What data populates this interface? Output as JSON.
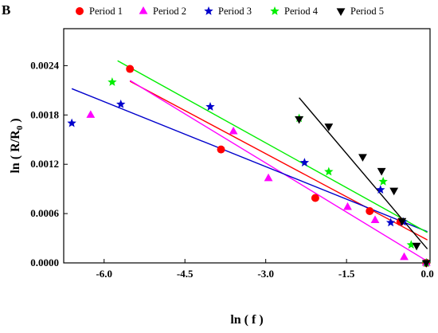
{
  "panel_label": "B",
  "chart_data": {
    "type": "scatter",
    "xlabel": "ln ( f )",
    "ylabel_main": "ln ( R/R",
    "ylabel_sub": "0",
    "ylabel_close": " )",
    "xlim": [
      -6.75,
      0.05
    ],
    "ylim": [
      0.0,
      0.00285
    ],
    "x_ticks": [
      -6.0,
      -4.5,
      -3.0,
      -1.5,
      0.0
    ],
    "x_tick_labels": [
      "-6.0",
      "-4.5",
      "-3.0",
      "-1.5",
      "0.0"
    ],
    "y_ticks": [
      0.0,
      0.0006,
      0.0012,
      0.0018,
      0.0024
    ],
    "y_tick_labels": [
      "0.0000",
      "0.0006",
      "0.0012",
      "0.0018",
      "0.0024"
    ],
    "grid": false,
    "legend_position": "top",
    "series": [
      {
        "name": "Period 1",
        "color": "#ff0000",
        "marker": "circle",
        "points": [
          [
            -5.52,
            0.00236
          ],
          [
            -3.83,
            0.00138
          ],
          [
            -2.08,
            0.00079
          ],
          [
            -1.07,
            0.00063
          ],
          [
            -0.5,
            0.0005
          ],
          [
            -0.02,
            0.0
          ]
        ],
        "fit": [
          [
            -5.52,
            0.00221
          ],
          [
            0.0,
            0.00028
          ]
        ]
      },
      {
        "name": "Period 2",
        "color": "#ff00ff",
        "marker": "triangle-up",
        "points": [
          [
            -6.25,
            0.0018
          ],
          [
            -3.6,
            0.0016
          ],
          [
            -2.95,
            0.00103
          ],
          [
            -1.48,
            0.00068
          ],
          [
            -0.97,
            0.00052
          ],
          [
            -0.43,
            7e-05
          ],
          [
            -0.02,
            0.0
          ]
        ],
        "fit": [
          [
            -5.52,
            0.00222
          ],
          [
            0.0,
            2e-05
          ]
        ]
      },
      {
        "name": "Period 3",
        "color": "#0000cc",
        "marker": "star",
        "points": [
          [
            -6.6,
            0.0017
          ],
          [
            -5.69,
            0.00193
          ],
          [
            -4.03,
            0.0019
          ],
          [
            -2.28,
            0.00122
          ],
          [
            -0.87,
            0.00089
          ],
          [
            -0.68,
            0.00049
          ],
          [
            -0.45,
            0.0005
          ],
          [
            -0.02,
            0.0
          ]
        ],
        "fit": [
          [
            -6.6,
            0.00212
          ],
          [
            0.0,
            0.00038
          ]
        ]
      },
      {
        "name": "Period 4",
        "color": "#00ee00",
        "marker": "star",
        "points": [
          [
            -5.85,
            0.0022
          ],
          [
            -2.38,
            0.00176
          ],
          [
            -1.83,
            0.00111
          ],
          [
            -0.82,
            0.00099
          ],
          [
            -0.3,
            0.00022
          ],
          [
            -0.02,
            0.0
          ]
        ],
        "fit": [
          [
            -5.75,
            0.00246
          ],
          [
            0.0,
            0.00037
          ]
        ]
      },
      {
        "name": "Period 5",
        "color": "#000000",
        "marker": "triangle-down",
        "points": [
          [
            -2.38,
            0.00175
          ],
          [
            -1.83,
            0.00166
          ],
          [
            -1.2,
            0.00129
          ],
          [
            -0.85,
            0.00112
          ],
          [
            -0.62,
            0.00088
          ],
          [
            -0.47,
            0.00051
          ],
          [
            -0.2,
            0.00021
          ],
          [
            -0.02,
            0.0
          ]
        ],
        "fit": [
          [
            -2.38,
            0.00201
          ],
          [
            0.0,
            0.00017
          ]
        ]
      }
    ]
  }
}
